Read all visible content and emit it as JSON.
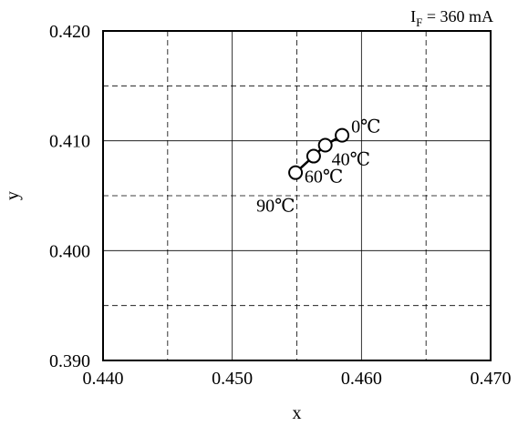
{
  "chart_data": {
    "type": "scatter",
    "condition_prefix": "I",
    "condition_sub": "F",
    "condition_value": " = 360 mA",
    "xlabel": "x",
    "ylabel": "y",
    "xlim": [
      0.44,
      0.47
    ],
    "ylim": [
      0.39,
      0.42
    ],
    "xticks": [
      0.44,
      0.45,
      0.46,
      0.47
    ],
    "xtick_labels": [
      "0.440",
      "0.450",
      "0.460",
      "0.470"
    ],
    "yticks": [
      0.39,
      0.4,
      0.41,
      0.42
    ],
    "ytick_labels": [
      "0.390",
      "0.400",
      "0.410",
      "0.420"
    ],
    "grid_solid_x": [
      0.45,
      0.46
    ],
    "grid_dashed_x": [
      0.445,
      0.455,
      0.465
    ],
    "grid_solid_y": [
      0.4,
      0.41
    ],
    "grid_dashed_y": [
      0.395,
      0.405,
      0.415
    ],
    "series": [
      {
        "x": [
          0.4585,
          0.4572,
          0.4563,
          0.4549
        ],
        "y": [
          0.4105,
          0.4096,
          0.4086,
          0.4071
        ],
        "point_labels": [
          "0℃",
          "40℃",
          "60℃",
          "90℃"
        ]
      }
    ]
  }
}
